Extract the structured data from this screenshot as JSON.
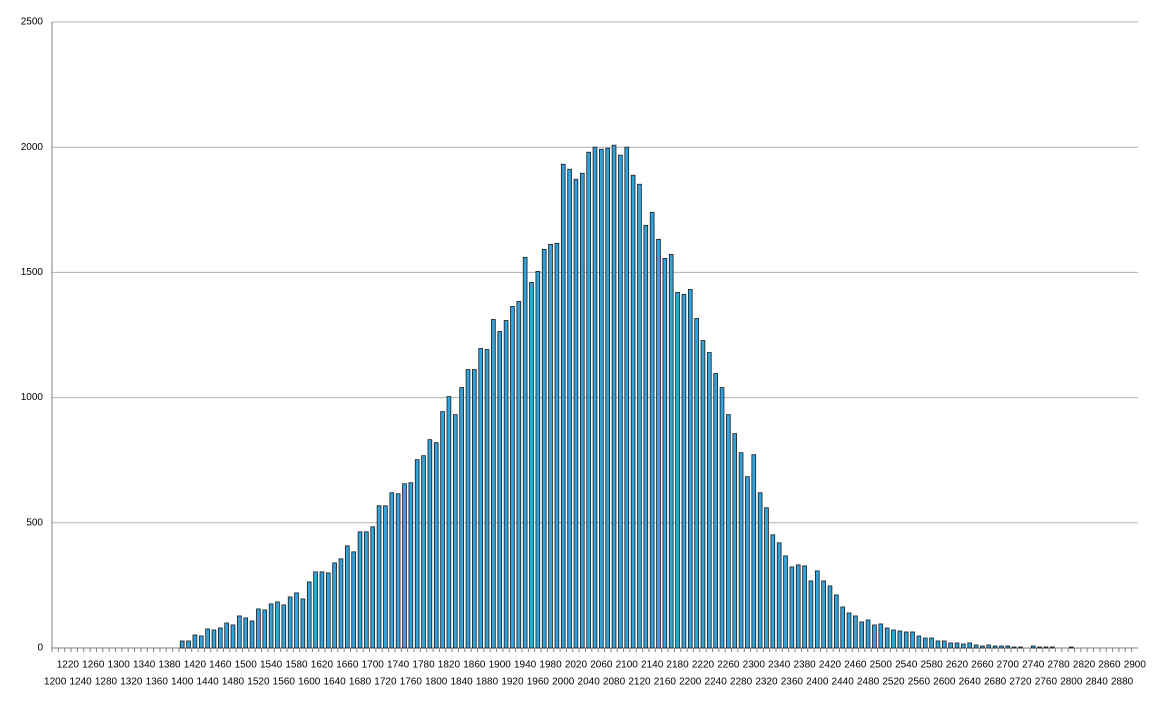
{
  "chart_data": {
    "type": "bar",
    "categories": [
      1200,
      null,
      1220,
      null,
      1240,
      null,
      1260,
      null,
      1280,
      null,
      1300,
      null,
      1320,
      null,
      1340,
      null,
      1360,
      null,
      1380,
      null,
      1400,
      null,
      1420,
      null,
      1440,
      null,
      1460,
      null,
      1480,
      null,
      1500,
      null,
      1520,
      null,
      1540,
      null,
      1560,
      null,
      1580,
      null,
      1600,
      null,
      1620,
      null,
      1640,
      null,
      1660,
      null,
      1680,
      null,
      1700,
      null,
      1720,
      null,
      1740,
      null,
      1760,
      null,
      1780,
      null,
      1800,
      null,
      1820,
      null,
      1840,
      null,
      1860,
      null,
      1880,
      null,
      1900,
      null,
      1920,
      null,
      1940,
      null,
      1960,
      null,
      1980,
      null,
      2000,
      null,
      2020,
      null,
      2040,
      null,
      2060,
      null,
      2080,
      null,
      2100,
      null,
      2120,
      null,
      2140,
      null,
      2160,
      null,
      2180,
      null,
      2200,
      null,
      2220,
      null,
      2240,
      null,
      2260,
      null,
      2280,
      null,
      2300,
      null,
      2320,
      null,
      2340,
      null,
      2360,
      null,
      2380,
      null,
      2400,
      null,
      2420,
      null,
      2440,
      null,
      2460,
      null,
      2480,
      null,
      2500,
      null,
      2520,
      null,
      2540,
      null,
      2560,
      null,
      2580,
      null,
      2600,
      null,
      2620,
      null,
      2640,
      null,
      2660,
      null,
      2680,
      null,
      2700,
      null,
      2720,
      null,
      2740,
      null,
      2760,
      null,
      2780,
      null,
      2800,
      null,
      2820,
      null,
      2840,
      null,
      2860,
      null,
      2880,
      null,
      2900
    ],
    "values": [
      0,
      0,
      0,
      0,
      0,
      0,
      0,
      0,
      0,
      0,
      0,
      0,
      0,
      0,
      0,
      0,
      0,
      0,
      0,
      0,
      28,
      28,
      52,
      48,
      76,
      72,
      80,
      100,
      92,
      128,
      120,
      108,
      156,
      152,
      176,
      184,
      172,
      204,
      220,
      196,
      264,
      304,
      304,
      300,
      340,
      356,
      408,
      384,
      464,
      464,
      484,
      568,
      568,
      620,
      616,
      656,
      660,
      752,
      768,
      832,
      820,
      944,
      1004,
      932,
      1040,
      1112,
      1112,
      1196,
      1192,
      1312,
      1264,
      1308,
      1364,
      1384,
      1560,
      1460,
      1504,
      1592,
      1612,
      1616,
      1932,
      1912,
      1872,
      1896,
      1980,
      2000,
      1992,
      1996,
      2008,
      1968,
      2000,
      1888,
      1852,
      1688,
      1740,
      1632,
      1556,
      1572,
      1420,
      1412,
      1432,
      1316,
      1228,
      1180,
      1096,
      1040,
      932,
      856,
      780,
      684,
      772,
      620,
      560,
      452,
      420,
      368,
      324,
      332,
      328,
      268,
      308,
      268,
      248,
      212,
      164,
      140,
      128,
      104,
      112,
      92,
      96,
      80,
      72,
      68,
      64,
      64,
      48,
      40,
      40,
      28,
      28,
      20,
      20,
      16,
      20,
      12,
      8,
      12,
      8,
      8,
      8,
      4,
      4,
      0,
      8,
      4,
      4,
      4,
      0,
      0,
      4,
      0,
      0,
      0,
      0,
      0,
      0,
      0,
      0,
      0,
      0
    ],
    "color": "#33a3dc",
    "ylim": [
      0,
      2500
    ],
    "yticks": [
      0,
      500,
      1000,
      1500,
      2000,
      2500
    ],
    "grid": true
  }
}
